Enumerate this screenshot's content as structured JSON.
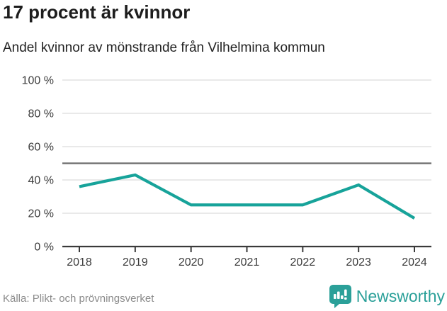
{
  "header": {
    "title": "17 procent är kvinnor",
    "subtitle": "Andel kvinnor av mönstrande från Vilhelmina kommun"
  },
  "chart_data": {
    "type": "line",
    "categories": [
      "2018",
      "2019",
      "2020",
      "2021",
      "2022",
      "2023",
      "2024"
    ],
    "values": [
      36,
      43,
      25,
      25,
      25,
      37,
      17
    ],
    "title": "17 procent är kvinnor",
    "subtitle": "Andel kvinnor av mönstrande från Vilhelmina kommun",
    "xlabel": "",
    "ylabel": "",
    "ylim": [
      0,
      100
    ],
    "y_ticks": [
      0,
      20,
      40,
      60,
      80,
      100
    ],
    "y_tick_labels": [
      "0 %",
      "20 %",
      "40 %",
      "60 %",
      "80 %",
      "100 %"
    ],
    "reference_line": 50,
    "grid": true,
    "legend": false,
    "line_color": "#17a39a",
    "reference_line_color": "#6b6b6b",
    "gridline_color": "#dcdcdc",
    "axis_color": "#3a3a3a",
    "tick_label_color": "#3c3c3c"
  },
  "footer": {
    "source": "Källa: Plikt- och prövningsverket",
    "brand": "Newsworthy",
    "brand_color": "#2ba099"
  }
}
